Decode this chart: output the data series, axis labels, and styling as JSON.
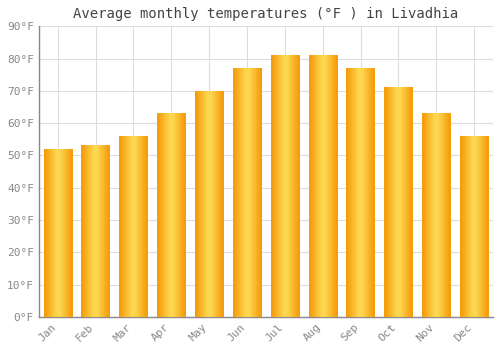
{
  "title": "Average monthly temperatures (°F ) in Livadhia",
  "months": [
    "Jan",
    "Feb",
    "Mar",
    "Apr",
    "May",
    "Jun",
    "Jul",
    "Aug",
    "Sep",
    "Oct",
    "Nov",
    "Dec"
  ],
  "values": [
    52,
    53,
    56,
    63,
    70,
    77,
    81,
    81,
    77,
    71,
    63,
    56
  ],
  "bar_color_center": "#FFD966",
  "bar_color_edge": "#F5A623",
  "ylim": [
    0,
    90
  ],
  "yticks": [
    0,
    10,
    20,
    30,
    40,
    50,
    60,
    70,
    80,
    90
  ],
  "ytick_labels": [
    "0°F",
    "10°F",
    "20°F",
    "30°F",
    "40°F",
    "50°F",
    "60°F",
    "70°F",
    "80°F",
    "90°F"
  ],
  "bg_color": "#ffffff",
  "grid_color": "#dddddd",
  "title_fontsize": 10,
  "tick_fontsize": 8,
  "bar_width": 0.75
}
